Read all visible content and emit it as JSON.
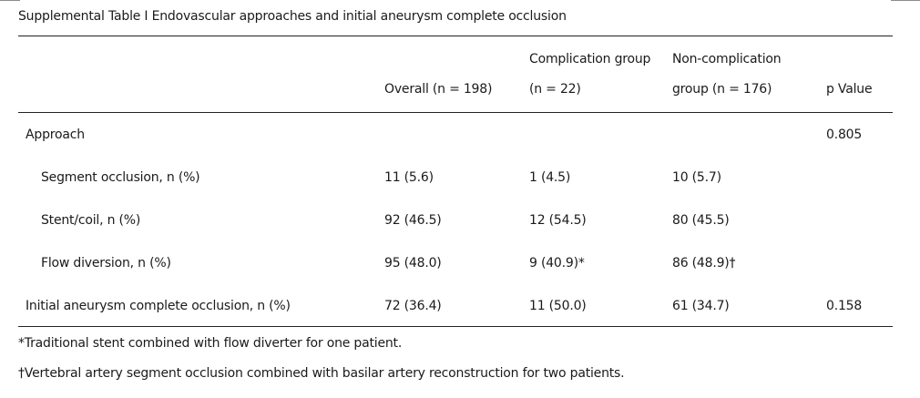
{
  "title": "Supplemental Table I Endovascular approaches and initial aneurysm complete occlusion",
  "header": {
    "overall": "Overall (n = 198)",
    "complication_line1": "Complication group",
    "complication_line2": "(n = 22)",
    "noncomplication_line1": "Non-complication",
    "noncomplication_line2": "group (n = 176)",
    "pvalue": "p Value"
  },
  "rows": [
    {
      "label": "Approach",
      "overall": "",
      "complication": "",
      "noncomplication": "",
      "p": "0.805"
    },
    {
      "label": "Segment occlusion, n (%)",
      "overall": "11 (5.6)",
      "complication": "1 (4.5)",
      "noncomplication": "10 (5.7)",
      "p": ""
    },
    {
      "label": "Stent/coil, n (%)",
      "overall": "92 (46.5)",
      "complication": "12 (54.5)",
      "noncomplication": "80 (45.5)",
      "p": ""
    },
    {
      "label": "Flow diversion, n (%)",
      "overall": "95 (48.0)",
      "complication": "9 (40.9)*",
      "noncomplication": "86 (48.9)†",
      "p": ""
    },
    {
      "label": "Initial aneurysm complete occlusion, n (%)",
      "overall": "72 (36.4)",
      "complication": "11 (50.0)",
      "noncomplication": "61 (34.7)",
      "p": "0.158"
    }
  ],
  "footnotes": [
    "*Traditional stent combined with flow diverter for one patient.",
    "†Vertebral artery segment occlusion combined with basilar artery reconstruction for two patients."
  ]
}
